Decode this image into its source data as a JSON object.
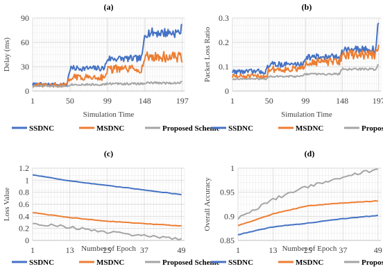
{
  "colors": {
    "series_1": "#4472C4",
    "series_2": "#ED7D31",
    "series_3": "#A5A5A5",
    "grid": "#D9D9D9"
  },
  "chart_data": [
    {
      "id": "a",
      "type": "line",
      "title": "(a)",
      "xlabel": "Simulation Time",
      "ylabel": "Delay (ms)",
      "x": [
        1,
        50,
        99,
        148,
        197
      ],
      "xlim": [
        1,
        200
      ],
      "ylim": [
        0,
        90
      ],
      "yticks": [
        0,
        30,
        60,
        90
      ],
      "grid": true,
      "legend_position": "bottom",
      "series": [
        {
          "name": "SSDNC",
          "color": "#4472C4",
          "values": [
            8,
            28,
            40,
            72,
            78
          ]
        },
        {
          "name": "MSDNC",
          "color": "#ED7D31",
          "values": [
            7,
            17,
            27,
            42,
            38
          ]
        },
        {
          "name": "Proposed Scheme",
          "color": "#A5A5A5",
          "values": [
            6,
            8,
            9,
            10,
            11
          ]
        }
      ]
    },
    {
      "id": "b",
      "type": "line",
      "title": "(b)",
      "xlabel": "Simulation Time",
      "ylabel": "Packet Loss Ratio",
      "x": [
        1,
        50,
        99,
        148,
        197
      ],
      "xlim": [
        1,
        200
      ],
      "ylim": [
        0,
        0.3
      ],
      "yticks": [
        0,
        0.1,
        0.2,
        0.3
      ],
      "grid": true,
      "legend_position": "bottom",
      "series": [
        {
          "name": "SSDNC",
          "color": "#4472C4",
          "values": [
            0.08,
            0.11,
            0.14,
            0.17,
            0.29
          ]
        },
        {
          "name": "MSDNC",
          "color": "#ED7D31",
          "values": [
            0.06,
            0.09,
            0.12,
            0.15,
            0.18
          ]
        },
        {
          "name": "Proposed Scheme",
          "color": "#A5A5A5",
          "values": [
            0.05,
            0.06,
            0.07,
            0.09,
            0.11
          ]
        }
      ]
    },
    {
      "id": "c",
      "type": "line",
      "title": "(c)",
      "xlabel": "Number of Epoch",
      "ylabel": "Loss Value",
      "x": [
        1,
        13,
        25,
        37,
        49
      ],
      "xlim": [
        1,
        50
      ],
      "ylim": [
        0,
        1.2
      ],
      "yticks": [
        0,
        0.2,
        0.4,
        0.6,
        0.8,
        1,
        1.2
      ],
      "ytick_labels": [
        "0",
        "0.2",
        "0.4",
        "0.6",
        "0.8",
        "1",
        "1.2"
      ],
      "grid": true,
      "legend_position": "bottom",
      "series": [
        {
          "name": "SSDNC",
          "color": "#4472C4",
          "values": [
            1.09,
            0.99,
            0.91,
            0.84,
            0.76
          ]
        },
        {
          "name": "MSDNC",
          "color": "#ED7D31",
          "values": [
            0.46,
            0.38,
            0.32,
            0.28,
            0.24
          ]
        },
        {
          "name": "Proposed Scheme",
          "color": "#A5A5A5",
          "values": [
            0.29,
            0.22,
            0.14,
            0.08,
            0.03
          ]
        }
      ]
    },
    {
      "id": "d",
      "type": "line",
      "title": "(d)",
      "xlabel": "Number of Epoch",
      "ylabel": "Overall Accuracy",
      "x": [
        1,
        13,
        25,
        37,
        49
      ],
      "xlim": [
        1,
        50
      ],
      "ylim": [
        0.85,
        1
      ],
      "yticks": [
        0.85,
        0.9,
        0.95,
        1
      ],
      "ytick_labels": [
        "0.85",
        "0.9",
        "0.95",
        "1"
      ],
      "grid": true,
      "legend_position": "bottom",
      "series": [
        {
          "name": "SSDNC",
          "color": "#4472C4",
          "values": [
            0.862,
            0.878,
            0.886,
            0.895,
            0.902
          ]
        },
        {
          "name": "MSDNC",
          "color": "#ED7D31",
          "values": [
            0.881,
            0.905,
            0.922,
            0.928,
            0.932
          ]
        },
        {
          "name": "Proposed Scheme",
          "color": "#A5A5A5",
          "values": [
            0.895,
            0.935,
            0.962,
            0.982,
            0.998
          ]
        }
      ]
    }
  ]
}
